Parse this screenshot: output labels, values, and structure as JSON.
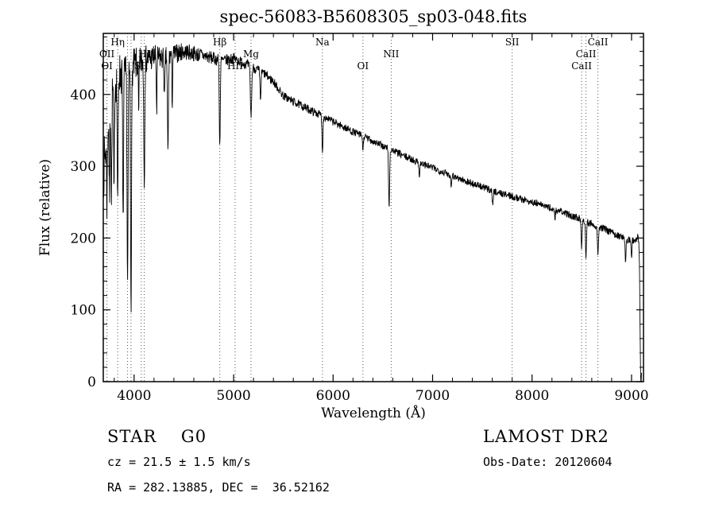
{
  "chart_data": {
    "type": "line",
    "title": "spec-56083-B5608305_sp03-048.fits",
    "xlabel": "Wavelength (Å)",
    "ylabel": "Flux (relative)",
    "xlim": [
      3690,
      9120
    ],
    "ylim": [
      0,
      485
    ],
    "xticks": [
      4000,
      5000,
      6000,
      7000,
      8000,
      9000
    ],
    "x_minor_step": 200,
    "yticks": [
      0,
      100,
      200,
      300,
      400
    ],
    "y_minor_step": 20,
    "grid": false,
    "legend": "none",
    "line_color": "#000000",
    "dotted_line_color": "#555555",
    "continuum": {
      "x": [
        3690,
        3750,
        3800,
        3850,
        3900,
        3950,
        4000,
        4100,
        4200,
        4300,
        4400,
        4500,
        4600,
        4700,
        4800,
        4900,
        5000,
        5100,
        5200,
        5300,
        5400,
        5500,
        5600,
        5700,
        5800,
        5900,
        6000,
        6100,
        6200,
        6300,
        6400,
        6500,
        6600,
        6700,
        6800,
        6900,
        7000,
        7100,
        7200,
        7300,
        7400,
        7500,
        7600,
        7700,
        7800,
        7900,
        8000,
        8100,
        8200,
        8300,
        8400,
        8500,
        8600,
        8700,
        8800,
        8900,
        9000,
        9060,
        9120
      ],
      "y": [
        290,
        375,
        415,
        430,
        425,
        432,
        440,
        448,
        452,
        450,
        456,
        460,
        457,
        454,
        450,
        447,
        450,
        444,
        437,
        430,
        418,
        398,
        390,
        383,
        376,
        370,
        362,
        355,
        348,
        342,
        335,
        328,
        322,
        315,
        309,
        303,
        298,
        292,
        287,
        281,
        276,
        271,
        266,
        262,
        258,
        254,
        250,
        246,
        241,
        236,
        231,
        226,
        220,
        214,
        208,
        201,
        196,
        200,
        195
      ]
    },
    "absorption_lines": [
      {
        "wavelength": 3727,
        "depth": 90,
        "width": 6
      },
      {
        "wavelength": 3752,
        "depth": 130,
        "width": 5
      },
      {
        "wavelength": 3772,
        "depth": 150,
        "width": 5
      },
      {
        "wavelength": 3798,
        "depth": 170,
        "width": 5
      },
      {
        "wavelength": 3835,
        "depth": 195,
        "width": 6
      },
      {
        "wavelength": 3889,
        "depth": 215,
        "width": 6
      },
      {
        "wavelength": 3934,
        "depth": 300,
        "width": 7
      },
      {
        "wavelength": 3969,
        "depth": 320,
        "width": 7
      },
      {
        "wavelength": 4046,
        "depth": 80,
        "width": 5
      },
      {
        "wavelength": 4102,
        "depth": 165,
        "width": 7
      },
      {
        "wavelength": 4227,
        "depth": 75,
        "width": 5
      },
      {
        "wavelength": 4305,
        "depth": 60,
        "width": 6
      },
      {
        "wavelength": 4340,
        "depth": 135,
        "width": 7
      },
      {
        "wavelength": 4383,
        "depth": 65,
        "width": 5
      },
      {
        "wavelength": 4861,
        "depth": 120,
        "width": 7
      },
      {
        "wavelength": 5175,
        "depth": 70,
        "width": 9
      },
      {
        "wavelength": 5270,
        "depth": 40,
        "width": 7
      },
      {
        "wavelength": 5893,
        "depth": 48,
        "width": 7
      },
      {
        "wavelength": 6300,
        "depth": 20,
        "width": 6
      },
      {
        "wavelength": 6563,
        "depth": 85,
        "width": 7
      },
      {
        "wavelength": 6867,
        "depth": 18,
        "width": 6
      },
      {
        "wavelength": 7186,
        "depth": 14,
        "width": 6
      },
      {
        "wavelength": 7605,
        "depth": 20,
        "width": 7
      },
      {
        "wavelength": 8230,
        "depth": 14,
        "width": 6
      },
      {
        "wavelength": 8498,
        "depth": 38,
        "width": 7
      },
      {
        "wavelength": 8542,
        "depth": 48,
        "width": 7
      },
      {
        "wavelength": 8662,
        "depth": 42,
        "width": 7
      },
      {
        "wavelength": 8940,
        "depth": 30,
        "width": 6
      },
      {
        "wavelength": 9000,
        "depth": 25,
        "width": 5
      },
      {
        "wavelength": 9095,
        "depth": 215,
        "width": 12
      }
    ],
    "noise": {
      "seed": 7,
      "blue_amp": 40,
      "red_amp": 5,
      "decay": 520
    },
    "sample_step": 3,
    "dotted_lines": [
      3727,
      3835,
      3934,
      3969,
      4072,
      4102,
      4861,
      5015,
      5175,
      5893,
      6300,
      6584,
      7800,
      8498,
      8542,
      8662
    ],
    "annotations": [
      {
        "label": "Hη",
        "wavelength": 3835,
        "row": 0
      },
      {
        "label": "OII",
        "wavelength": 3727,
        "row": 1
      },
      {
        "label": "OI",
        "wavelength": 3727,
        "row": 2
      },
      {
        "label": "HI",
        "wavelength": 4102,
        "row": 1
      },
      {
        "label": "SII",
        "wavelength": 4072,
        "row": 2
      },
      {
        "label": "Hβ",
        "wavelength": 4861,
        "row": 0
      },
      {
        "label": "Mg",
        "wavelength": 5175,
        "row": 1
      },
      {
        "label": "HII",
        "wavelength": 5015,
        "row": 2
      },
      {
        "label": "Na",
        "wavelength": 5893,
        "row": 0
      },
      {
        "label": "OI",
        "wavelength": 6300,
        "row": 2
      },
      {
        "label": "NII",
        "wavelength": 6584,
        "row": 1
      },
      {
        "label": "SII",
        "wavelength": 7800,
        "row": 0
      },
      {
        "label": "CaII",
        "wavelength": 8662,
        "row": 0
      },
      {
        "label": "CaII",
        "wavelength": 8542,
        "row": 1
      },
      {
        "label": "CaII",
        "wavelength": 8498,
        "row": 2
      }
    ]
  },
  "footer": {
    "class_label": "STAR    G0",
    "cz": "cz = 21.5 ± 1.5 km/s",
    "ra_dec": "RA = 282.13885, DEC =  36.52162",
    "survey": "LAMOST DR2",
    "obs_date": "Obs-Date: 20120604"
  }
}
